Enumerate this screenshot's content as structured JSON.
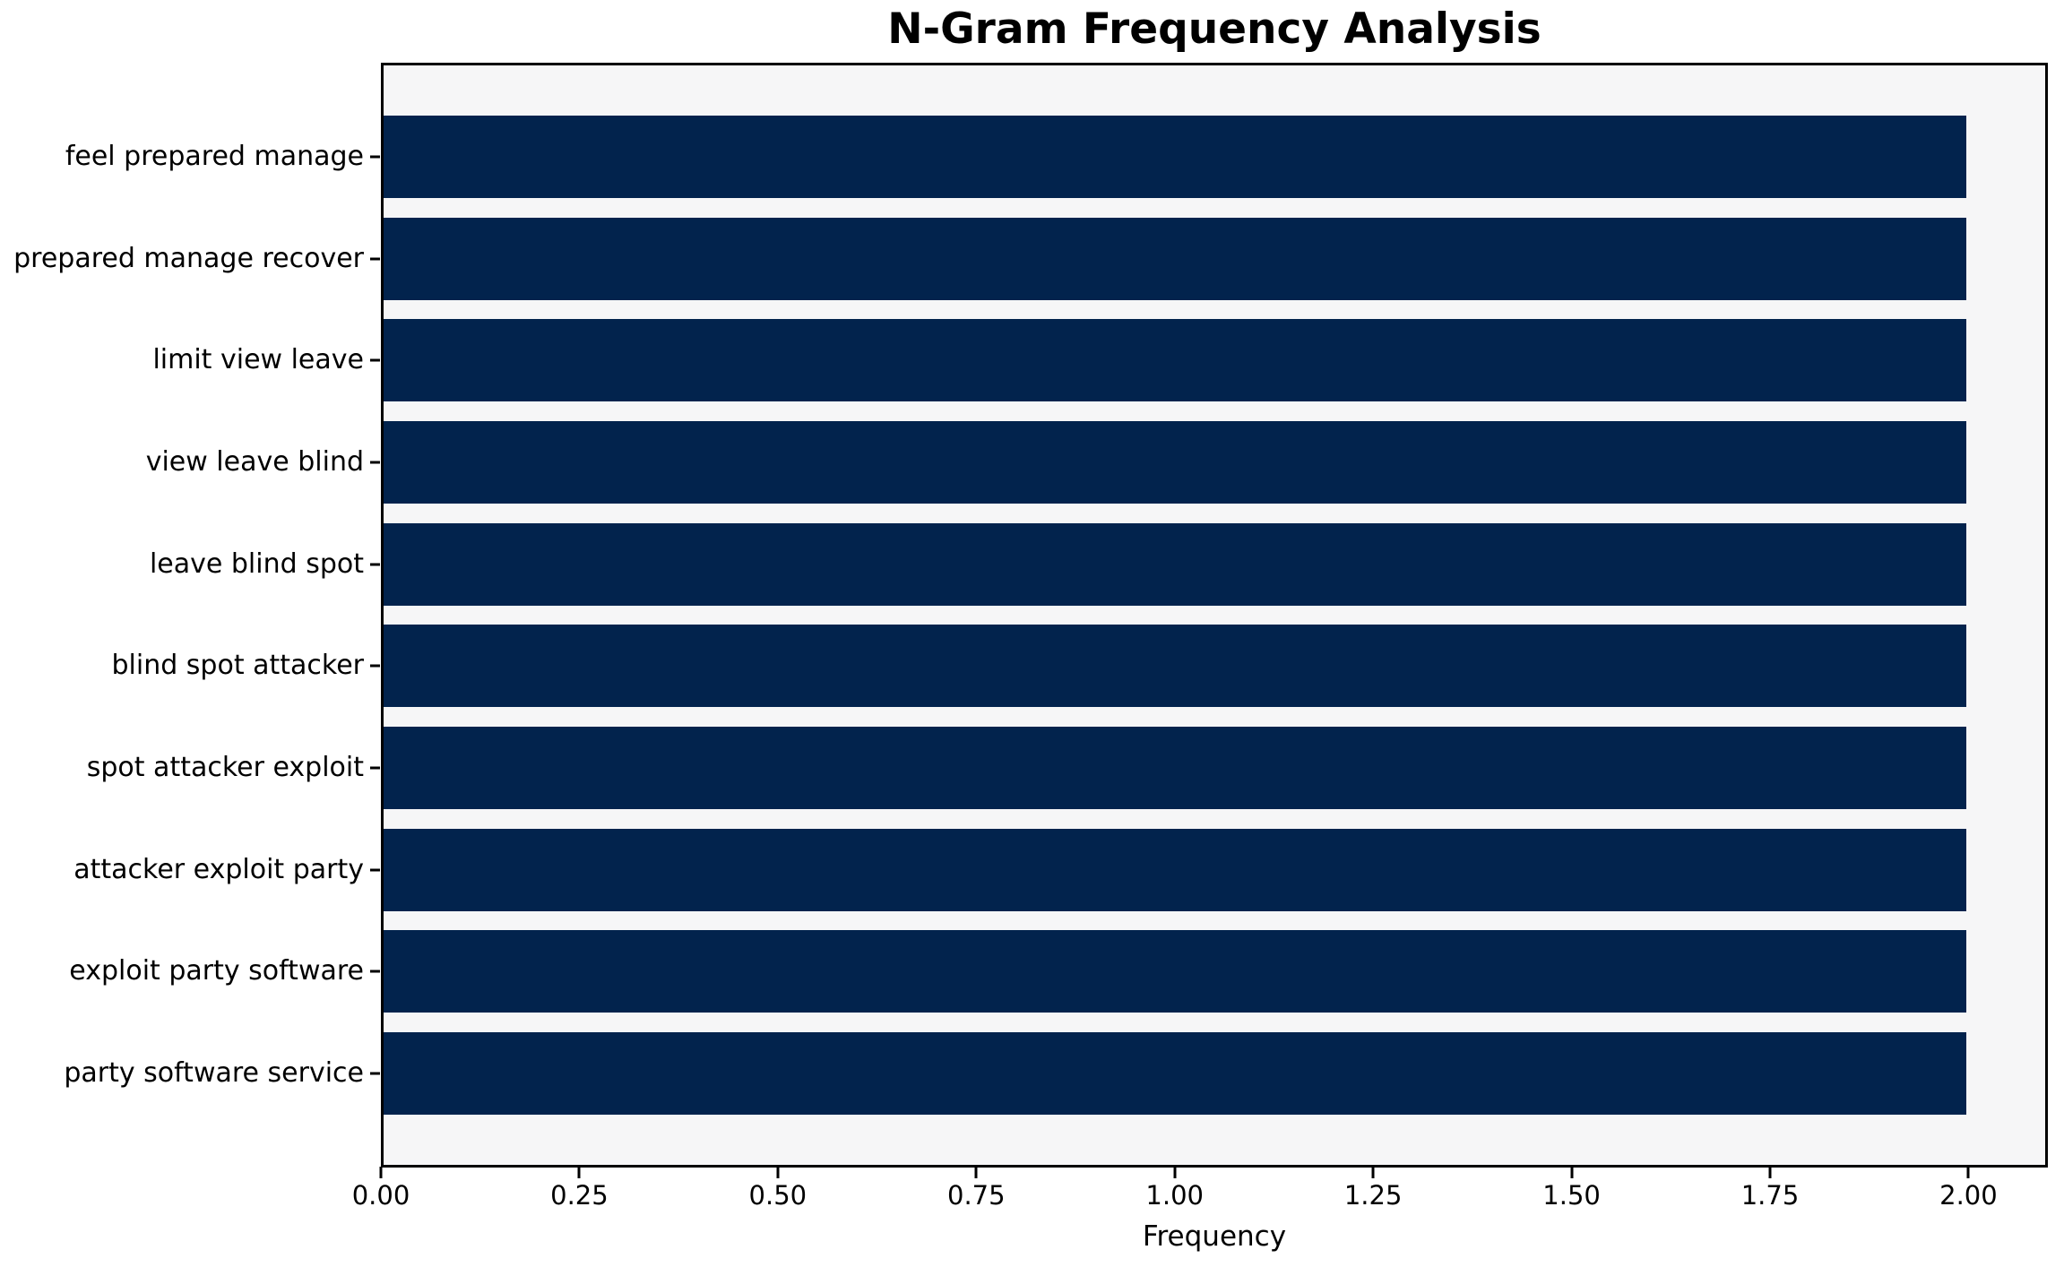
{
  "chart": {
    "title": "N-Gram Frequency Analysis",
    "xlabel": "Frequency",
    "colors": {
      "bar": "#02234d",
      "plot_bg": "#f6f6f7",
      "figure_bg": "#ffffff",
      "axis": "#000000",
      "text": "#000000"
    }
  },
  "chart_data": {
    "type": "bar",
    "orientation": "horizontal",
    "title": "N-Gram Frequency Analysis",
    "xlabel": "Frequency",
    "ylabel": "",
    "categories": [
      "feel prepared manage",
      "prepared manage recover",
      "limit view leave",
      "view leave blind",
      "leave blind spot",
      "blind spot attacker",
      "spot attacker exploit",
      "attacker exploit party",
      "exploit party software",
      "party software service"
    ],
    "values": [
      2.0,
      2.0,
      2.0,
      2.0,
      2.0,
      2.0,
      2.0,
      2.0,
      2.0,
      2.0
    ],
    "xlim": [
      0,
      2.1
    ],
    "x_ticks": [
      {
        "label": "0.00",
        "value": 0.0
      },
      {
        "label": "0.25",
        "value": 0.25
      },
      {
        "label": "0.50",
        "value": 0.5
      },
      {
        "label": "0.75",
        "value": 0.75
      },
      {
        "label": "1.00",
        "value": 1.0
      },
      {
        "label": "1.25",
        "value": 1.25
      },
      {
        "label": "1.50",
        "value": 1.5
      },
      {
        "label": "1.75",
        "value": 1.75
      },
      {
        "label": "2.00",
        "value": 2.0
      }
    ],
    "grid": false,
    "legend": null
  }
}
